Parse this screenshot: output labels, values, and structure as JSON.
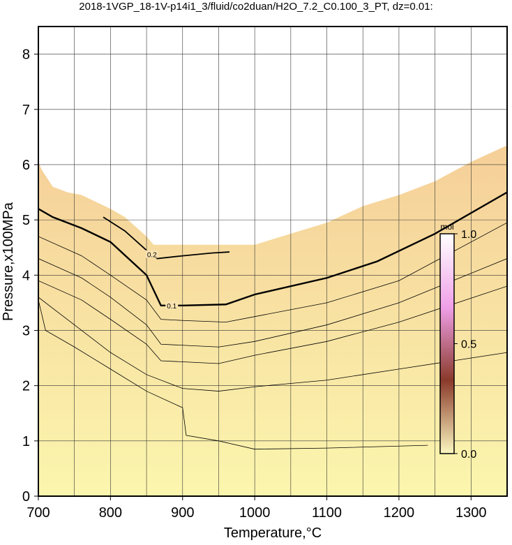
{
  "chart_data": {
    "type": "contour",
    "title": "2018-1VGP_18-1V-p14i1_3/fluid/co2duan/H2O_7.2_C0.100_3_PT, dz=0.01:",
    "x_label": "Temperature,°C",
    "y_label": "Pressure,x100MPa",
    "xlim": [
      700,
      1350
    ],
    "ylim": [
      0,
      8.5
    ],
    "xticks": [
      700,
      800,
      900,
      1000,
      1100,
      1200,
      1300
    ],
    "minor_xticks": [
      750,
      850,
      950,
      1050,
      1150,
      1250
    ],
    "yticks": [
      0,
      1,
      2,
      3,
      4,
      5,
      6,
      7,
      8
    ],
    "grid": true,
    "fill_colors": [
      "#fbf6ae",
      "#f5cf98"
    ],
    "series": [
      {
        "color": "#f5cf98",
        "x": [
          700,
          705,
          720,
          740,
          760,
          800,
          820,
          850,
          860,
          900,
          950,
          1000,
          1050,
          1100,
          1150,
          1200,
          1250,
          1300,
          1350
        ],
        "values": [
          6.05,
          5.9,
          5.6,
          5.5,
          5.45,
          5.2,
          5.05,
          4.7,
          4.55,
          4.55,
          4.55,
          4.55,
          4.75,
          4.95,
          5.25,
          5.45,
          5.7,
          6.05,
          6.35
        ]
      },
      {
        "color": "#000000",
        "level": 0.2,
        "x": [
          790,
          820,
          850,
          865,
          900,
          940,
          965
        ],
        "values": [
          5.05,
          4.8,
          4.45,
          4.3,
          4.35,
          4.4,
          4.42
        ]
      },
      {
        "color": "#000000",
        "level": 0.1,
        "x": [
          700,
          720,
          760,
          800,
          850,
          870,
          900,
          960,
          1000,
          1100,
          1170,
          1250,
          1350
        ],
        "values": [
          5.2,
          5.05,
          4.85,
          4.6,
          4.0,
          3.45,
          3.45,
          3.47,
          3.65,
          3.95,
          4.25,
          4.75,
          5.5
        ]
      },
      {
        "color": "#000000",
        "x": [
          700,
          760,
          800,
          850,
          870,
          900,
          960,
          1000,
          1100,
          1200,
          1350
        ],
        "values": [
          4.7,
          4.35,
          4.0,
          3.55,
          3.2,
          3.18,
          3.15,
          3.25,
          3.5,
          3.9,
          4.95
        ]
      },
      {
        "color": "#000000",
        "x": [
          700,
          760,
          800,
          850,
          870,
          950,
          1000,
          1100,
          1200,
          1350
        ],
        "values": [
          4.3,
          3.95,
          3.6,
          3.1,
          2.75,
          2.7,
          2.8,
          3.1,
          3.5,
          4.3
        ]
      },
      {
        "color": "#000000",
        "x": [
          700,
          760,
          800,
          850,
          870,
          950,
          1000,
          1100,
          1200,
          1350
        ],
        "values": [
          3.9,
          3.55,
          3.2,
          2.75,
          2.45,
          2.4,
          2.55,
          2.8,
          3.15,
          3.8
        ]
      },
      {
        "color": "#000000",
        "x": [
          700,
          750,
          800,
          850,
          900,
          950,
          1000,
          1100,
          1200,
          1350
        ],
        "values": [
          3.6,
          3.1,
          2.6,
          2.2,
          1.95,
          1.9,
          1.98,
          2.1,
          2.3,
          2.6
        ]
      },
      {
        "color": "#000000",
        "x": [
          700,
          710,
          750,
          800,
          850,
          900,
          905,
          950,
          1000,
          1100,
          1240
        ],
        "values": [
          3.55,
          3.0,
          2.7,
          2.3,
          1.9,
          1.6,
          1.1,
          1.0,
          0.85,
          0.87,
          0.92
        ]
      }
    ],
    "colorbar": {
      "label": "mol",
      "colors": [
        "#fbf7c0",
        "#8a3a2a",
        "#f0a0e8",
        "#ffffff"
      ],
      "ylim": [
        0,
        1
      ],
      "yticks": [
        {
          "value": 0,
          "label": "0.0"
        },
        0.5,
        {
          "value": 1,
          "label": "1.0"
        }
      ]
    }
  }
}
